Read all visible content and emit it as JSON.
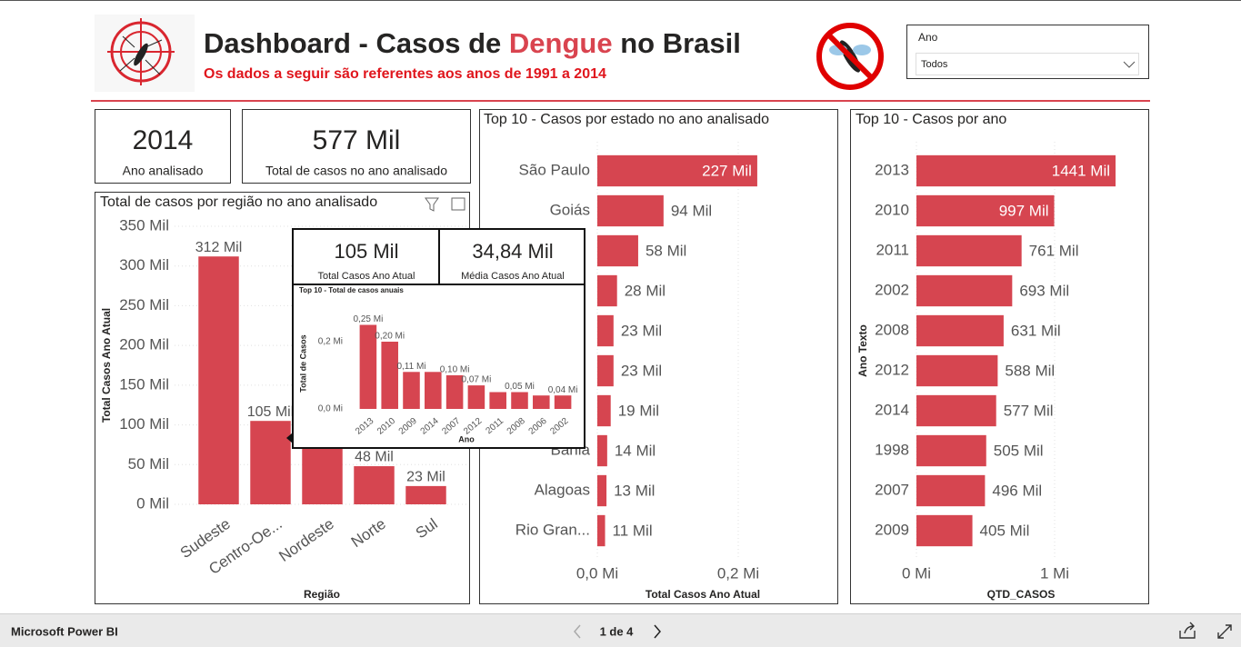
{
  "header": {
    "title_parts": [
      "Dashboard - Casos de ",
      "Dengue",
      " no Brasil"
    ],
    "subtitle": "Os dados a seguir são referentes aos anos de 1991 a 2014"
  },
  "slicer": {
    "label": "Ano",
    "selected": "Todos"
  },
  "cards": [
    {
      "value": "2014",
      "label": "Ano analisado"
    },
    {
      "value": "577 Mil",
      "label": "Total de casos no ano analisado"
    }
  ],
  "tooltip": {
    "cards": [
      {
        "value": "105 Mil",
        "label": "Total Casos Ano Atual"
      },
      {
        "value": "34,84 Mil",
        "label": "Média Casos Ano Atual"
      }
    ]
  },
  "chart_data": [
    {
      "type": "bar",
      "orientation": "vertical",
      "title": "Total de casos por região no ano analisado",
      "categories": [
        "Sudeste",
        "Centro-Oe...",
        "Nordeste",
        "Norte",
        "Sul"
      ],
      "values": [
        312,
        105,
        89,
        48,
        23
      ],
      "value_labels": [
        "312 Mil",
        "105 Mil",
        null,
        "48 Mil",
        "23 Mil"
      ],
      "color": "#d64550",
      "ylim": [
        0,
        350
      ],
      "yticks": [
        {
          "value": 0,
          "label": "0 Mil"
        },
        {
          "value": 50,
          "label": "50 Mil"
        },
        {
          "value": 100,
          "label": "100 Mil"
        },
        {
          "value": 150,
          "label": "150 Mil"
        },
        {
          "value": 200,
          "label": "200 Mil"
        },
        {
          "value": 250,
          "label": "250 Mil"
        },
        {
          "value": 300,
          "label": "300 Mil"
        },
        {
          "value": 350,
          "label": "350 Mil"
        }
      ],
      "x_label": "Região",
      "y_label": "Total Casos Ano Atual",
      "grid": true
    },
    {
      "type": "bar",
      "orientation": "horizontal",
      "title": "Top 10 - Casos por estado no ano analisado",
      "categories": [
        "São Paulo",
        "Goiás",
        null,
        null,
        null,
        null,
        null,
        "Bahia",
        "Alagoas",
        "Rio Gran..."
      ],
      "values": [
        0.227,
        0.094,
        0.058,
        0.028,
        0.023,
        0.023,
        0.019,
        0.014,
        0.013,
        0.011
      ],
      "value_labels": [
        "227 Mil",
        "94 Mil",
        "58 Mil",
        "28 Mil",
        "23 Mil",
        "23 Mil",
        "19 Mil",
        "14 Mil",
        "13 Mil",
        "11 Mil"
      ],
      "color": "#d64550",
      "xlim": [
        0,
        0.3
      ],
      "xticks": [
        {
          "value": 0,
          "label": "0,0 Mi"
        },
        {
          "value": 0.2,
          "label": "0,2 Mi"
        }
      ],
      "x_label": "Total Casos Ano Atual",
      "grid": true
    },
    {
      "type": "bar",
      "orientation": "horizontal",
      "title": "Top 10 - Casos por ano",
      "categories": [
        "2013",
        "2010",
        "2011",
        "2002",
        "2008",
        "2012",
        "2014",
        "1998",
        "2007",
        "2009"
      ],
      "values": [
        1.441,
        0.997,
        0.761,
        0.693,
        0.631,
        0.588,
        0.577,
        0.505,
        0.496,
        0.405
      ],
      "value_labels": [
        "1441 Mil",
        "997 Mil",
        "761 Mil",
        "693 Mil",
        "631 Mil",
        "588 Mil",
        "577 Mil",
        "505 Mil",
        "496 Mil",
        "405 Mil"
      ],
      "color": "#d64550",
      "xlim": [
        0,
        1.6
      ],
      "xticks": [
        {
          "value": 0,
          "label": "0 Mi"
        },
        {
          "value": 1,
          "label": "1 Mi"
        }
      ],
      "x_label": "QTD_CASOS",
      "y_label": "Ano Texto",
      "grid": true
    },
    {
      "type": "bar",
      "orientation": "vertical",
      "title": "Top 10 - Total de casos anuais",
      "categories": [
        "2013",
        "2010",
        "2009",
        "2014",
        "2007",
        "2012",
        "2011",
        "2008",
        "2006",
        "2002"
      ],
      "values": [
        0.25,
        0.2,
        0.11,
        0.11,
        0.1,
        0.07,
        0.05,
        0.05,
        0.04,
        0.04
      ],
      "value_labels": [
        "0,25 Mi",
        "0,20 Mi",
        "0,11 Mi",
        null,
        "0,10 Mi",
        "0,07 Mi",
        null,
        "0,05 Mi",
        null,
        "0,04 Mi"
      ],
      "color": "#d64550",
      "ylim": [
        0,
        0.27
      ],
      "yticks": [
        {
          "value": 0,
          "label": "0,0 Mi"
        },
        {
          "value": 0.2,
          "label": "0,2 Mi"
        }
      ],
      "x_label": "Ano",
      "y_label": "Total de Casos",
      "grid": false
    }
  ],
  "footer": {
    "brand": "Microsoft Power BI",
    "page": "1 de 4"
  }
}
